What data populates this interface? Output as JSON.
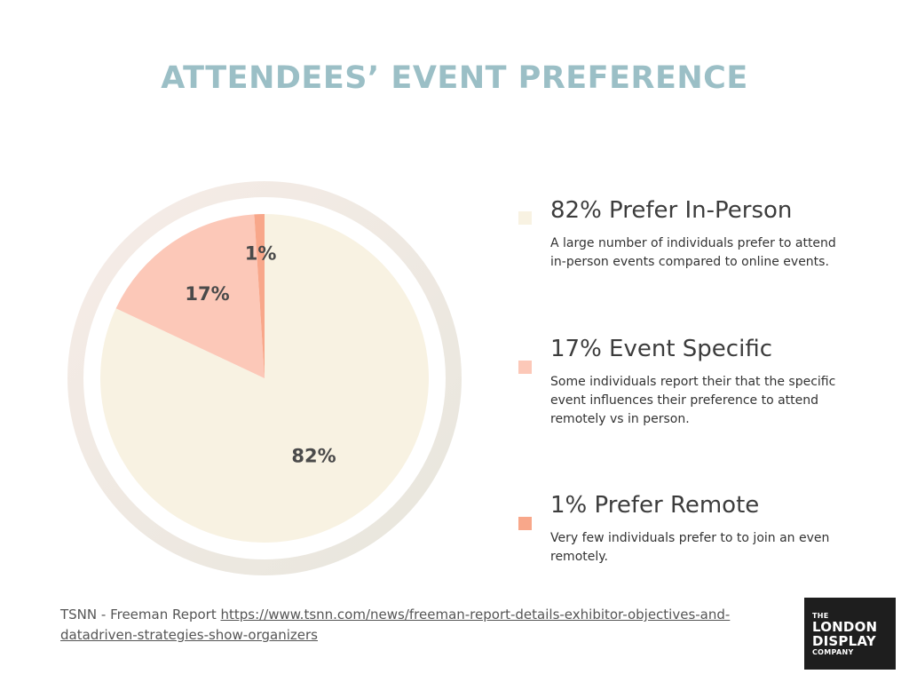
{
  "title": "ATTENDEES’ EVENT PREFERENCE",
  "chart_data": {
    "type": "pie",
    "title": "ATTENDEES’ EVENT PREFERENCE",
    "slices": [
      {
        "label": "Prefer In-Person",
        "value": 82,
        "display": "82%",
        "color": "#f8f2e2"
      },
      {
        "label": "Event Specific",
        "value": 17,
        "display": "17%",
        "color": "#fcc8b8"
      },
      {
        "label": "Prefer Remote",
        "value": 1,
        "display": "1%",
        "color": "#f8a78a"
      }
    ],
    "ring_colors": [
      "#f6ece7",
      "#e8e6dd"
    ]
  },
  "legend": [
    {
      "heading": "82% Prefer In-Person",
      "description": "A large number of individuals prefer to attend in-person events compared to online events.",
      "color": "#f8f2e2"
    },
    {
      "heading": "17% Event Specific",
      "description": "Some individuals report their that the specific event influences their preference to attend remotely vs in person.",
      "color": "#fcc8b8"
    },
    {
      "heading": "1% Prefer Remote",
      "description": "Very few individuals prefer to to join an even remotely.",
      "color": "#f8a78a"
    }
  ],
  "source": {
    "prefix": "TSNN - Freeman Report ",
    "link_text": "https://www.tsnn.com/news/freeman-report-details-exhibitor-objectives-and-datadriven-strategies-show-organizers"
  },
  "logo": {
    "line1": "THE",
    "line2": "LONDON",
    "line3": "DISPLAY",
    "line4": "COMPANY"
  }
}
